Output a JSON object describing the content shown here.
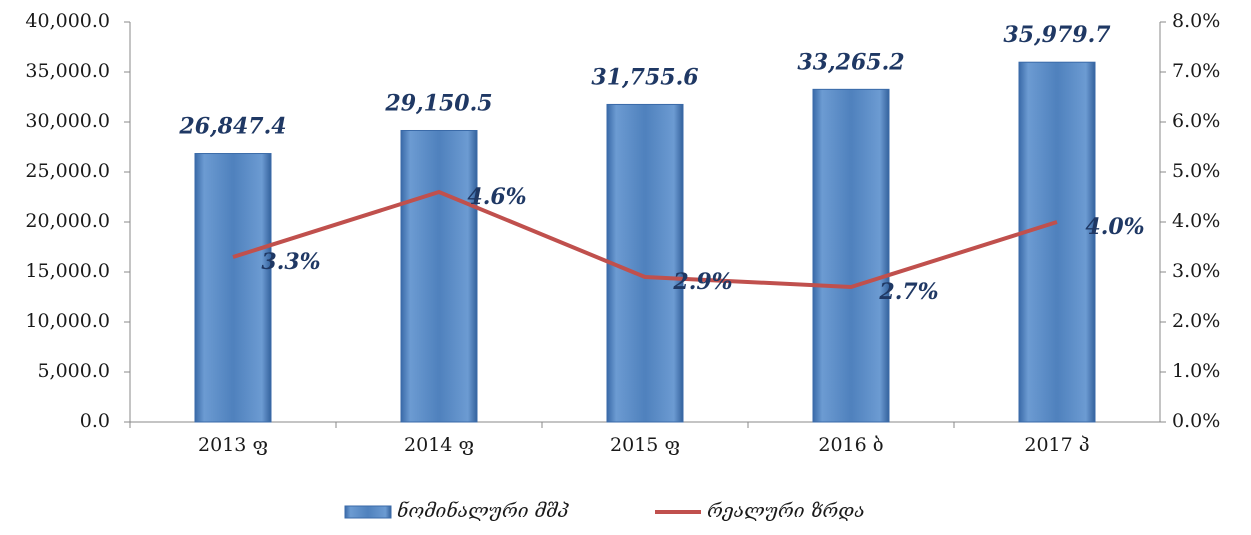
{
  "chart_data": {
    "type": "bar",
    "categories": [
      "2013 ფ",
      "2014 ფ",
      "2015 ფ",
      "2016 ბ",
      "2017 პ"
    ],
    "series": [
      {
        "name": "ნომინალური მშპ",
        "type": "bar",
        "color": "#4f81bd",
        "values": [
          26847.4,
          29150.5,
          31755.6,
          33265.2,
          35979.7
        ],
        "value_labels": [
          "26,847.4",
          "29,150.5",
          "31,755.6",
          "33,265.2",
          "35,979.7"
        ]
      },
      {
        "name": "რეალური ზრდა",
        "type": "line",
        "axis": "y2",
        "color": "#c0504d",
        "values": [
          3.3,
          4.6,
          2.9,
          2.7,
          4.0
        ],
        "value_labels": [
          "3.3%",
          "4.6%",
          "2.9%",
          "2.7%",
          "4.0%"
        ]
      }
    ],
    "ylim": [
      0,
      40000
    ],
    "yticks": [
      {
        "value": 0,
        "label": "0.0"
      },
      {
        "value": 5000,
        "label": "5,000.0"
      },
      {
        "value": 10000,
        "label": "10,000.0"
      },
      {
        "value": 15000,
        "label": "15,000.0"
      },
      {
        "value": 20000,
        "label": "20,000.0"
      },
      {
        "value": 25000,
        "label": "25,000.0"
      },
      {
        "value": 30000,
        "label": "30,000.0"
      },
      {
        "value": 35000,
        "label": "35,000.0"
      },
      {
        "value": 40000,
        "label": "40,000.0"
      }
    ],
    "y2lim": [
      0,
      8
    ],
    "y2ticks": [
      {
        "value": 0,
        "label": "0.0%"
      },
      {
        "value": 1,
        "label": "1.0%"
      },
      {
        "value": 2,
        "label": "2.0%"
      },
      {
        "value": 3,
        "label": "3.0%"
      },
      {
        "value": 4,
        "label": "4.0%"
      },
      {
        "value": 5,
        "label": "5.0%"
      },
      {
        "value": 6,
        "label": "6.0%"
      },
      {
        "value": 7,
        "label": "7.0%"
      },
      {
        "value": 8,
        "label": "8.0%"
      }
    ],
    "legend": "bottom"
  }
}
